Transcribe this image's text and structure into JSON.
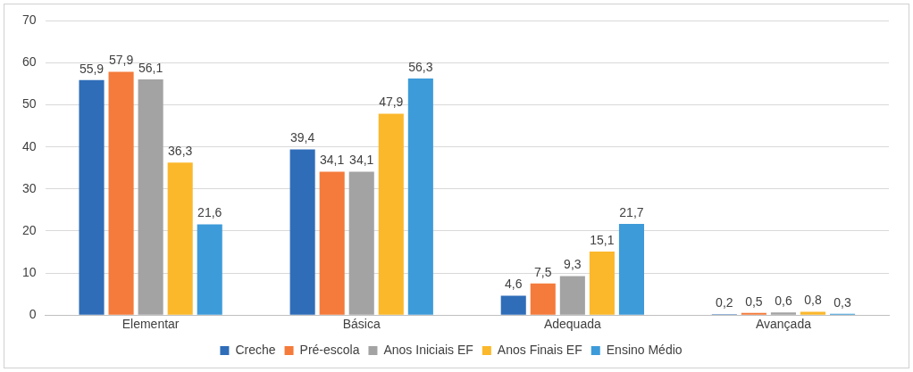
{
  "chart_data": {
    "type": "bar",
    "categories": [
      "Elementar",
      "Básica",
      "Adequada",
      "Avançada"
    ],
    "series": [
      {
        "name": "Creche",
        "color": "#2f6db8",
        "values": [
          55.9,
          39.4,
          4.6,
          0.2
        ],
        "value_labels": [
          "55,9",
          "39,4",
          "4,6",
          "0,2"
        ]
      },
      {
        "name": "Pré-escola",
        "color": "#f47b3b",
        "values": [
          57.9,
          34.1,
          7.5,
          0.5
        ],
        "value_labels": [
          "57,9",
          "34,1",
          "7,5",
          "0,5"
        ]
      },
      {
        "name": "Anos Iniciais EF",
        "color": "#a3a3a3",
        "values": [
          56.1,
          34.1,
          9.3,
          0.6
        ],
        "value_labels": [
          "56,1",
          "34,1",
          "9,3",
          "0,6"
        ]
      },
      {
        "name": "Anos Finais EF",
        "color": "#fbb82b",
        "values": [
          36.3,
          47.9,
          15.1,
          0.8
        ],
        "value_labels": [
          "36,3",
          "47,9",
          "15,1",
          "0,8"
        ]
      },
      {
        "name": "Ensino Médio",
        "color": "#3d9bd9",
        "values": [
          21.6,
          56.3,
          21.7,
          0.3
        ],
        "value_labels": [
          "21,6",
          "56,3",
          "21,7",
          "0,3"
        ]
      }
    ],
    "ylim": [
      0,
      70
    ],
    "yticks": [
      0,
      10,
      20,
      30,
      40,
      50,
      60,
      70
    ],
    "grid": "y",
    "legend": "bottom"
  }
}
